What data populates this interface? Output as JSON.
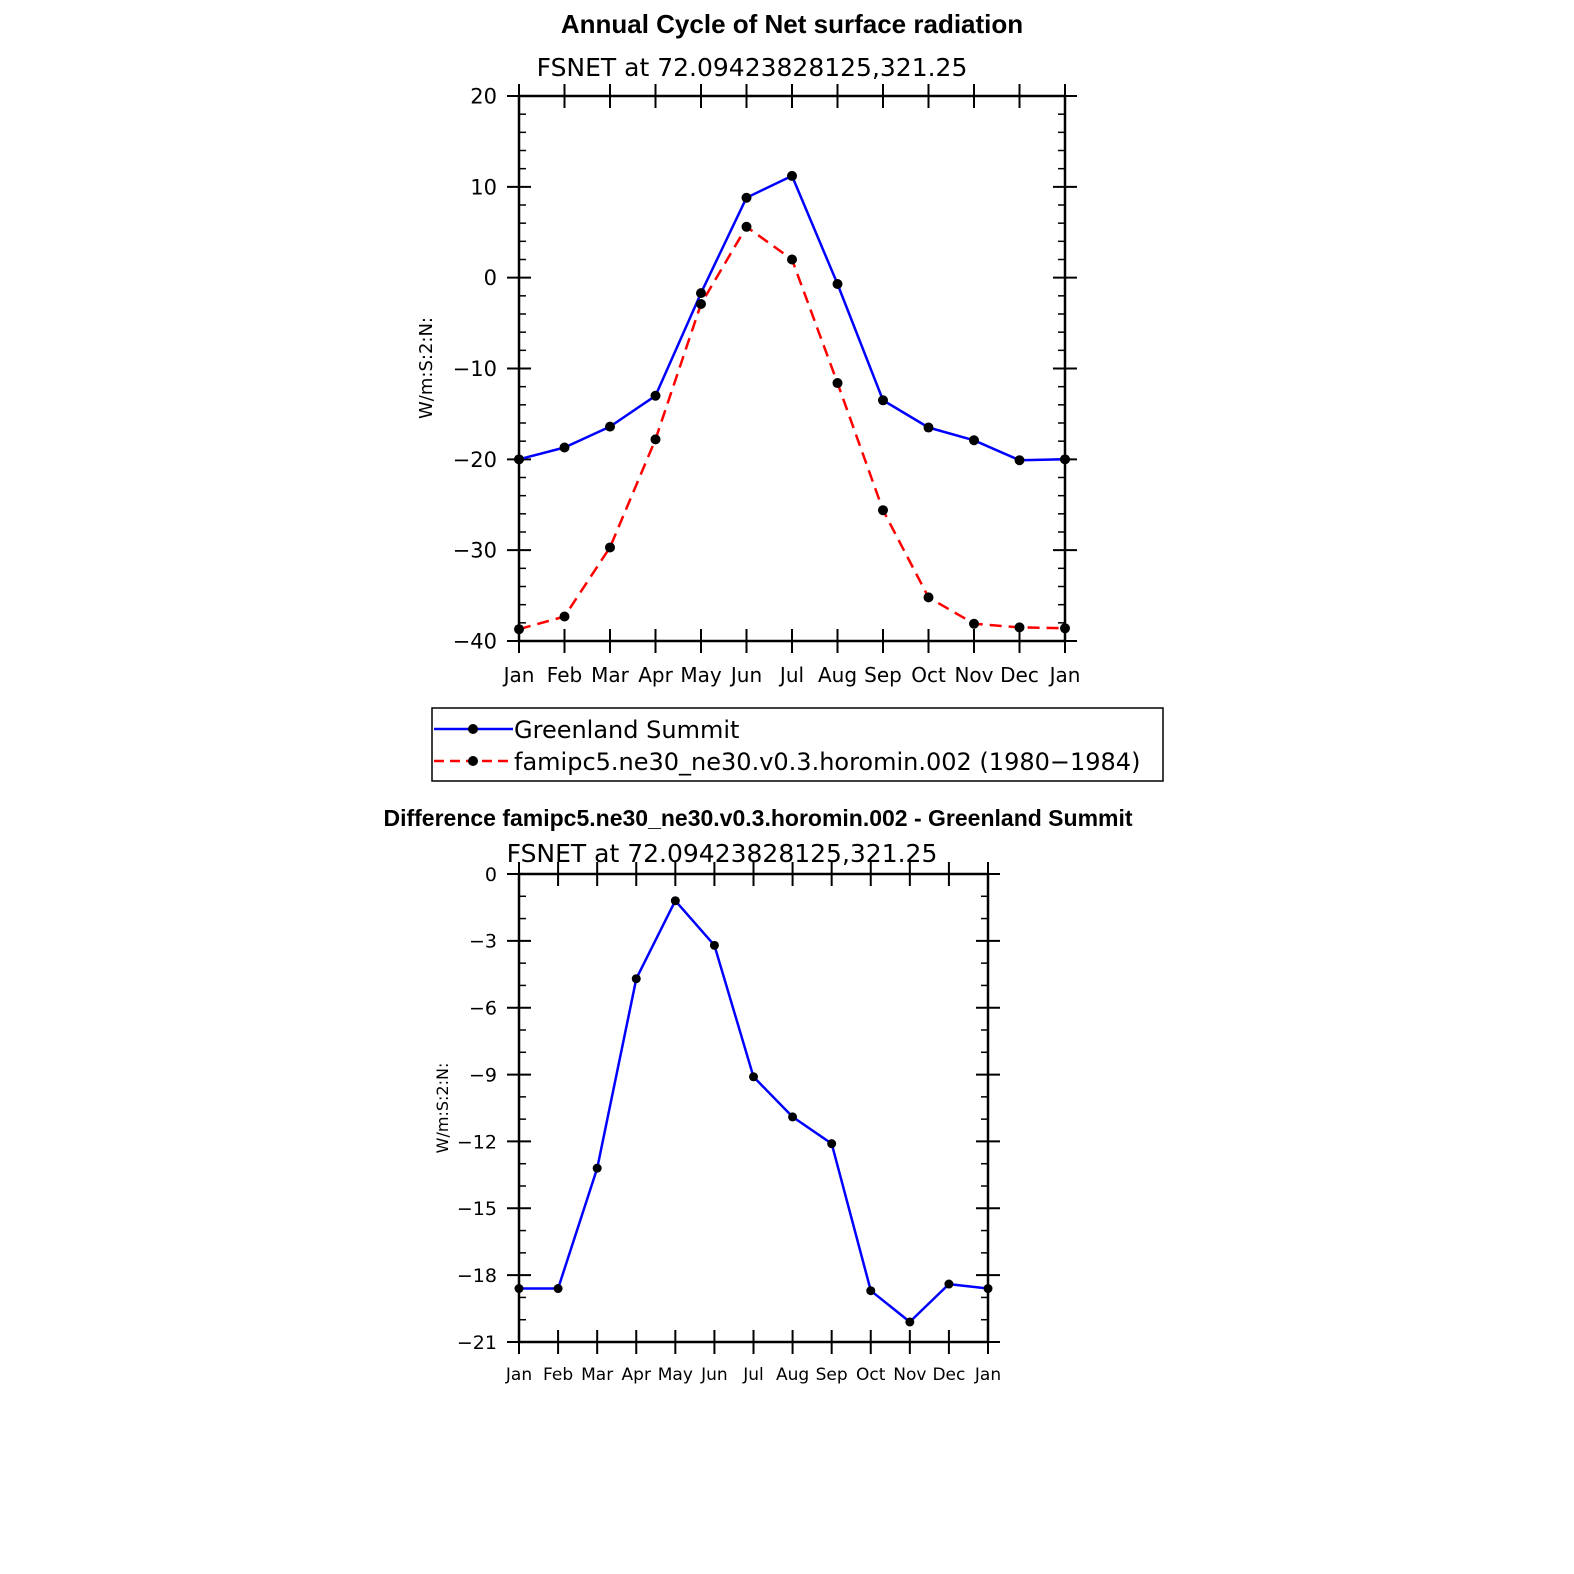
{
  "chart_data": [
    {
      "type": "line",
      "title": "Annual Cycle of Net surface radiation",
      "subtitle": "FSNET at 72.09423828125,321.25",
      "ylabel": "W/m:S:2:N:",
      "xlabel": "",
      "categories": [
        "Jan",
        "Feb",
        "Mar",
        "Apr",
        "May",
        "Jun",
        "Jul",
        "Aug",
        "Sep",
        "Oct",
        "Nov",
        "Dec",
        "Jan"
      ],
      "ylim": [
        -40,
        20
      ],
      "yticks": [
        -40,
        -30,
        -20,
        -10,
        0,
        10,
        20
      ],
      "ytick_labels": [
        "−40",
        "−30",
        "−20",
        "−10",
        "0",
        "10",
        "20"
      ],
      "legend_placement": "bottom",
      "series": [
        {
          "name": "Greenland Summit",
          "color": "#0000ff",
          "style": "solid",
          "values": [
            -20.0,
            -18.7,
            -16.4,
            -13.0,
            -1.7,
            8.8,
            11.2,
            -0.7,
            -13.5,
            -16.5,
            -17.9,
            -20.1,
            -20.0
          ]
        },
        {
          "name": "famipc5.ne30_ne30.v0.3.horomin.002 (1980−1984)",
          "color": "#ff0000",
          "style": "dashed",
          "values": [
            -38.7,
            -37.3,
            -29.7,
            -17.8,
            -2.9,
            5.6,
            2.0,
            -11.6,
            -25.6,
            -35.2,
            -38.1,
            -38.5,
            -38.6
          ]
        }
      ]
    },
    {
      "type": "line",
      "title": "Difference famipc5.ne30_ne30.v0.3.horomin.002 - Greenland Summit",
      "subtitle": "FSNET at 72.09423828125,321.25",
      "ylabel": "W/m:S:2:N:",
      "xlabel": "",
      "categories": [
        "Jan",
        "Feb",
        "Mar",
        "Apr",
        "May",
        "Jun",
        "Jul",
        "Aug",
        "Sep",
        "Oct",
        "Nov",
        "Dec",
        "Jan"
      ],
      "ylim": [
        -21,
        0
      ],
      "yticks": [
        -21,
        -18,
        -15,
        -12,
        -9,
        -6,
        -3,
        0
      ],
      "ytick_labels": [
        "−21",
        "−18",
        "−15",
        "−12",
        "−9",
        "−6",
        "−3",
        "0"
      ],
      "series": [
        {
          "name": "Difference",
          "color": "#0000ff",
          "style": "solid",
          "values": [
            -18.6,
            -18.6,
            -13.2,
            -4.7,
            -1.2,
            -3.2,
            -9.1,
            -10.9,
            -12.1,
            -18.7,
            -20.1,
            -18.4,
            -18.6
          ]
        }
      ]
    }
  ]
}
